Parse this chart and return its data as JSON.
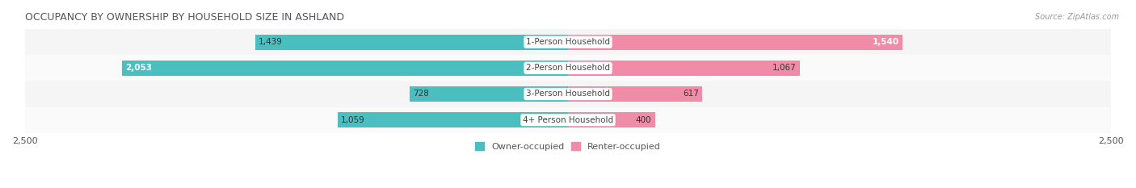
{
  "title": "OCCUPANCY BY OWNERSHIP BY HOUSEHOLD SIZE IN ASHLAND",
  "source": "Source: ZipAtlas.com",
  "categories": [
    "1-Person Household",
    "2-Person Household",
    "3-Person Household",
    "4+ Person Household"
  ],
  "owner_values": [
    1439,
    2053,
    728,
    1059
  ],
  "renter_values": [
    1540,
    1067,
    617,
    400
  ],
  "owner_color": "#4BBFBF",
  "renter_color": "#F08CA8",
  "row_bg_even": "#F5F5F5",
  "row_bg_odd": "#FAFAFA",
  "xlim": 2500,
  "bar_height": 0.58,
  "title_fontsize": 9,
  "label_fontsize": 7.5,
  "tick_fontsize": 8,
  "legend_fontsize": 8,
  "value_fontsize": 7.5,
  "inside_threshold_owner": 300,
  "inside_threshold_renter": 300
}
